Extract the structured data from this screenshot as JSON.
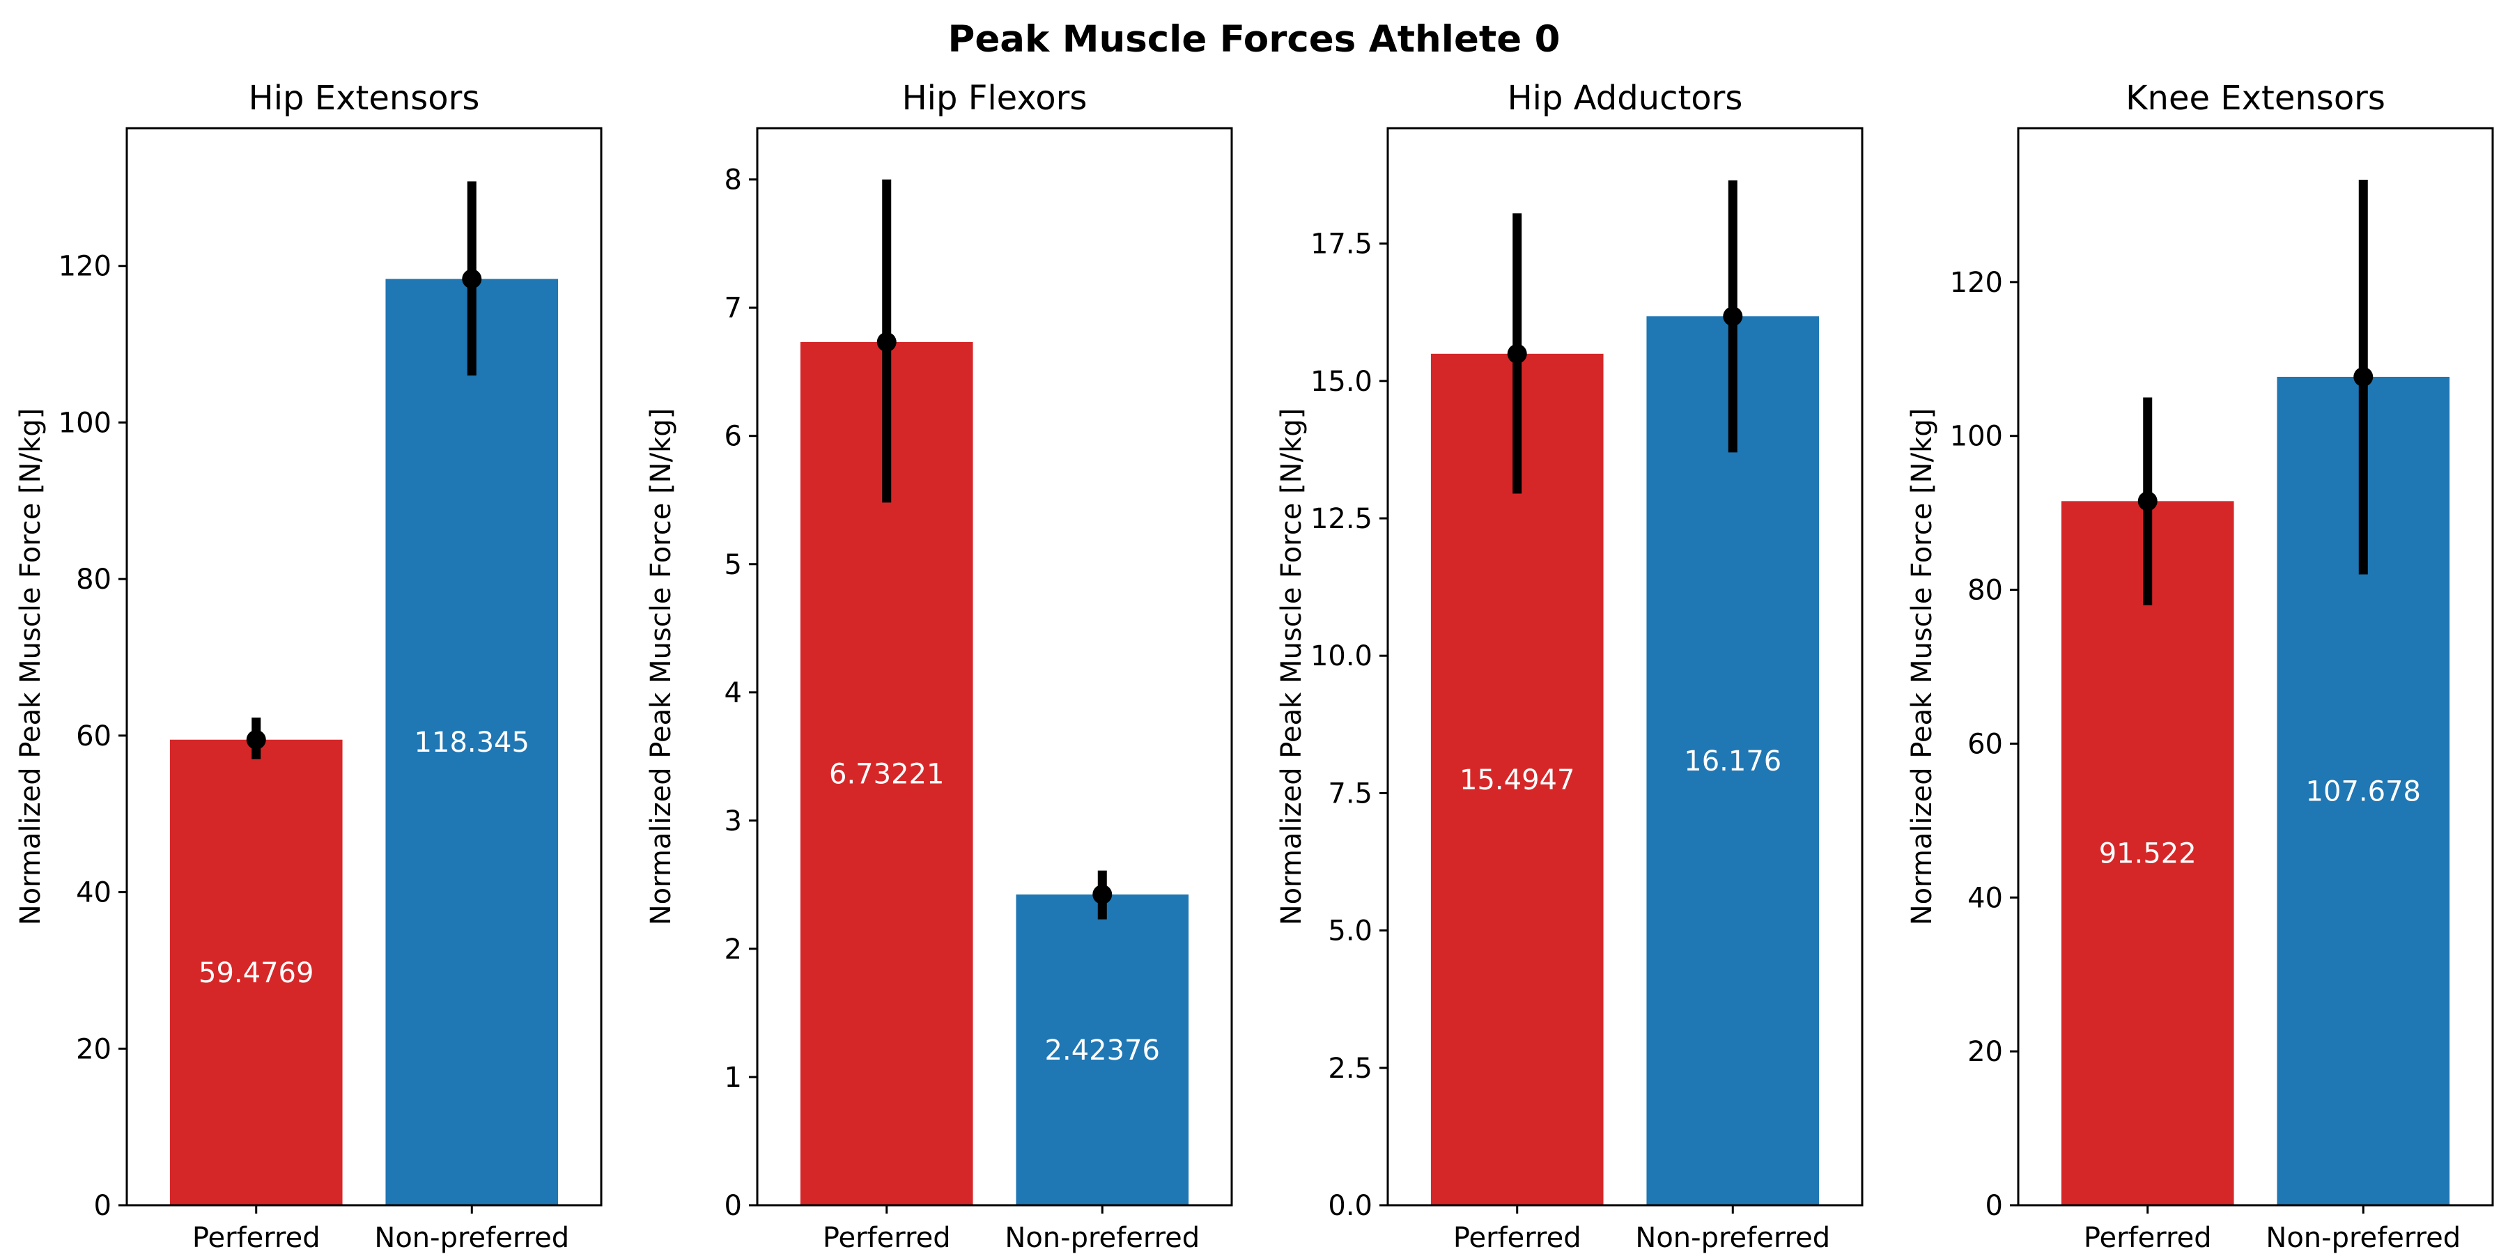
{
  "chart_data": {
    "type": "bar",
    "title": "Peak Muscle Forces Athlete 0",
    "colors": {
      "Perferred": "#d62728",
      "Non-preferred": "#1f77b4",
      "errorbar": "#000000"
    },
    "panels": [
      {
        "title": "Hip Extensors",
        "ylabel": "Normalized Peak Muscle Force [N/kg]",
        "categories": [
          "Perferred",
          "Non-preferred"
        ],
        "values": [
          59.4769,
          118.345
        ],
        "value_labels": [
          "59.4769",
          "118.345"
        ],
        "error_low": [
          57.0,
          106.0
        ],
        "error_high": [
          62.3,
          130.8
        ],
        "ylim": [
          0,
          137.6
        ],
        "yticks": [
          0,
          20,
          40,
          60,
          80,
          100,
          120
        ],
        "ytick_labels": [
          "0",
          "20",
          "40",
          "60",
          "80",
          "100",
          "120"
        ]
      },
      {
        "title": "Hip Flexors",
        "ylabel": "Normalized Peak Muscle Force [N/kg]",
        "categories": [
          "Perferred",
          "Non-preferred"
        ],
        "values": [
          6.73221,
          2.42376
        ],
        "value_labels": [
          "6.73221",
          "2.42376"
        ],
        "error_low": [
          5.48,
          2.23
        ],
        "error_high": [
          8.0,
          2.61
        ],
        "ylim": [
          0,
          8.4
        ],
        "yticks": [
          0,
          1,
          2,
          3,
          4,
          5,
          6,
          7,
          8
        ],
        "ytick_labels": [
          "0",
          "1",
          "2",
          "3",
          "4",
          "5",
          "6",
          "7",
          "8"
        ]
      },
      {
        "title": "Hip Adductors",
        "ylabel": "Normalized Peak Muscle Force [N/kg]",
        "categories": [
          "Perferred",
          "Non-preferred"
        ],
        "values": [
          15.4947,
          16.176
        ],
        "value_labels": [
          "15.4947",
          "16.176"
        ],
        "error_low": [
          12.95,
          13.7
        ],
        "error_high": [
          18.05,
          18.65
        ],
        "ylim": [
          0,
          19.6
        ],
        "yticks": [
          0,
          2.5,
          5,
          7.5,
          10,
          12.5,
          15,
          17.5
        ],
        "ytick_labels": [
          "0.0",
          "2.5",
          "5.0",
          "7.5",
          "10.0",
          "12.5",
          "15.0",
          "17.5"
        ]
      },
      {
        "title": "Knee Extensors",
        "ylabel": "Normalized Peak Muscle Force [N/kg]",
        "categories": [
          "Perferred",
          "Non-preferred"
        ],
        "values": [
          91.522,
          107.678
        ],
        "value_labels": [
          "91.522",
          "107.678"
        ],
        "error_low": [
          78.0,
          82.0
        ],
        "error_high": [
          105.0,
          133.3
        ],
        "ylim": [
          0,
          140
        ],
        "yticks": [
          0,
          20,
          40,
          60,
          80,
          100,
          120
        ],
        "ytick_labels": [
          "0",
          "20",
          "40",
          "60",
          "80",
          "100",
          "120"
        ]
      }
    ]
  }
}
